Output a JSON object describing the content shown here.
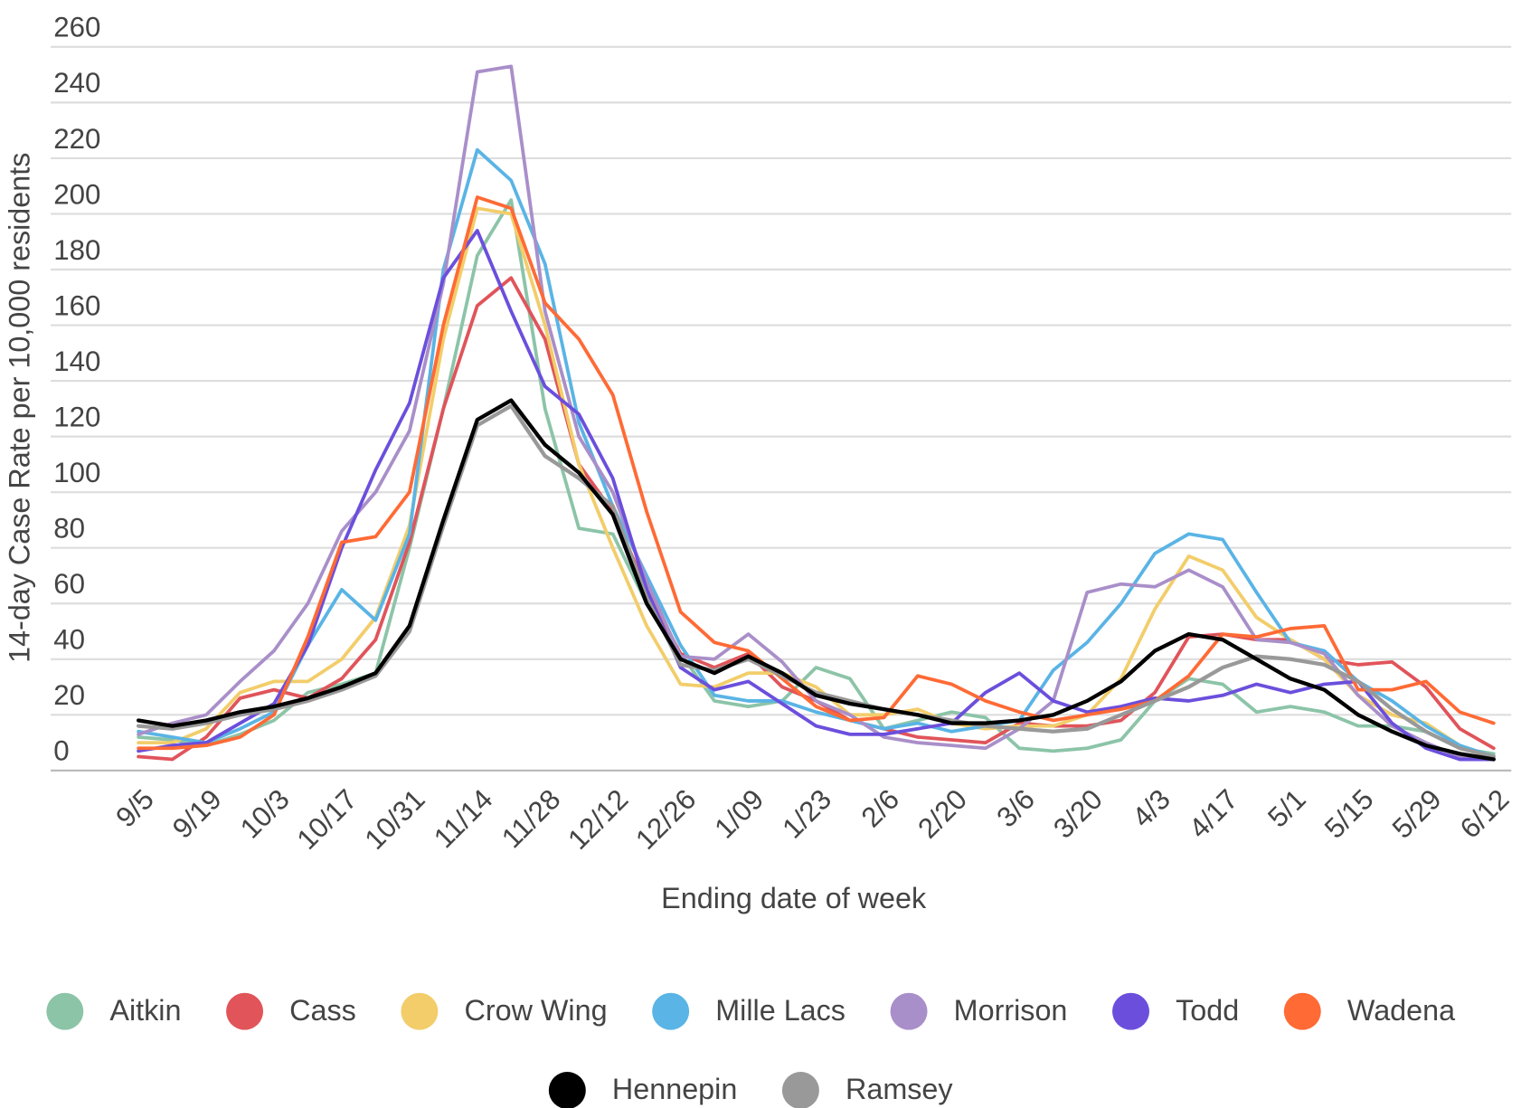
{
  "chart_data": {
    "type": "line",
    "y_label": "14-day Case Rate per 10,000 residents",
    "x_label": "Ending date of week",
    "categories": [
      "9/5",
      null,
      "9/19",
      null,
      "10/3",
      null,
      "10/17",
      null,
      "10/31",
      null,
      "11/14",
      null,
      "11/28",
      null,
      "12/12",
      null,
      "12/26",
      null,
      "1/09",
      null,
      "1/23",
      null,
      "2/6",
      null,
      "2/20",
      null,
      "3/6",
      null,
      "3/20",
      null,
      "4/3",
      null,
      "4/17",
      null,
      "5/1",
      null,
      "5/15",
      null,
      "5/29",
      null,
      "6/12"
    ],
    "ylim": [
      0,
      260
    ],
    "yticks": [
      0,
      20,
      40,
      60,
      80,
      100,
      120,
      140,
      160,
      180,
      200,
      220,
      240,
      260
    ],
    "grid": true,
    "legend": "bottom",
    "series": [
      {
        "name": "Aitkin",
        "color": "#8cc4a8",
        "values": [
          12,
          11,
          9,
          13,
          18,
          28,
          31,
          35,
          80,
          130,
          185,
          205,
          130,
          87,
          85,
          60,
          42,
          25,
          23,
          25,
          37,
          33,
          15,
          18,
          21,
          19,
          8,
          7,
          8,
          11,
          25,
          33,
          31,
          21,
          23,
          21,
          16,
          16,
          14,
          8,
          6
        ]
      },
      {
        "name": "Cass",
        "color": "#e0545a",
        "values": [
          5,
          4,
          12,
          26,
          29,
          26,
          33,
          47,
          82,
          130,
          167,
          177,
          155,
          110,
          93,
          65,
          42,
          37,
          42,
          30,
          25,
          18,
          15,
          12,
          11,
          10,
          17,
          16,
          16,
          18,
          28,
          48,
          49,
          47,
          47,
          40,
          38,
          39,
          30,
          15,
          8
        ]
      },
      {
        "name": "Crow Wing",
        "color": "#f2cd6a",
        "values": [
          10,
          10,
          15,
          28,
          32,
          32,
          40,
          55,
          88,
          155,
          202,
          200,
          160,
          110,
          80,
          52,
          31,
          30,
          35,
          35,
          30,
          20,
          20,
          22,
          17,
          15,
          16,
          16,
          20,
          33,
          58,
          77,
          72,
          55,
          47,
          40,
          27,
          20,
          17,
          9,
          4
        ]
      },
      {
        "name": "Mille Lacs",
        "color": "#5ab4e5",
        "values": [
          14,
          12,
          10,
          15,
          21,
          45,
          65,
          54,
          85,
          180,
          223,
          212,
          182,
          125,
          95,
          70,
          45,
          27,
          25,
          25,
          21,
          18,
          15,
          17,
          14,
          16,
          18,
          36,
          46,
          60,
          78,
          85,
          83,
          64,
          46,
          43,
          32,
          25,
          16,
          9,
          5
        ]
      },
      {
        "name": "Morrison",
        "color": "#a98fc9",
        "values": [
          13,
          17,
          20,
          32,
          43,
          60,
          86,
          100,
          122,
          175,
          251,
          253,
          165,
          120,
          100,
          68,
          41,
          40,
          49,
          39,
          25,
          20,
          12,
          10,
          9,
          8,
          15,
          25,
          64,
          67,
          66,
          72,
          66,
          47,
          46,
          42,
          27,
          16,
          10,
          5,
          4
        ]
      },
      {
        "name": "Todd",
        "color": "#6b4fdc",
        "values": [
          7,
          9,
          10,
          17,
          24,
          45,
          80,
          108,
          132,
          177,
          194,
          165,
          138,
          128,
          105,
          65,
          37,
          29,
          32,
          24,
          16,
          13,
          13,
          15,
          17,
          28,
          35,
          25,
          21,
          23,
          26,
          25,
          27,
          31,
          28,
          31,
          32,
          17,
          8,
          4,
          4
        ]
      },
      {
        "name": "Wadena",
        "color": "#ff6a35",
        "values": [
          8,
          8,
          9,
          12,
          20,
          48,
          82,
          84,
          100,
          160,
          206,
          202,
          168,
          155,
          135,
          93,
          57,
          46,
          43,
          33,
          23,
          18,
          19,
          34,
          31,
          25,
          21,
          18,
          20,
          22,
          25,
          34,
          49,
          48,
          51,
          52,
          29,
          29,
          32,
          21,
          17
        ]
      },
      {
        "name": "Hennepin",
        "color": "#000000",
        "values": [
          18,
          16,
          18,
          21,
          23,
          26,
          30,
          35,
          52,
          90,
          126,
          133,
          117,
          107,
          92,
          60,
          40,
          35,
          41,
          35,
          27,
          24,
          22,
          20,
          17,
          17,
          18,
          20,
          25,
          32,
          43,
          49,
          47,
          40,
          33,
          29,
          20,
          14,
          9,
          6,
          4
        ]
      },
      {
        "name": "Ramsey",
        "color": "#999999",
        "values": [
          16,
          15,
          17,
          20,
          22,
          25,
          29,
          34,
          50,
          88,
          124,
          131,
          113,
          105,
          95,
          62,
          38,
          36,
          40,
          34,
          28,
          25,
          22,
          20,
          18,
          16,
          15,
          14,
          15,
          20,
          25,
          30,
          37,
          41,
          40,
          38,
          32,
          22,
          14,
          8,
          5
        ]
      }
    ]
  }
}
